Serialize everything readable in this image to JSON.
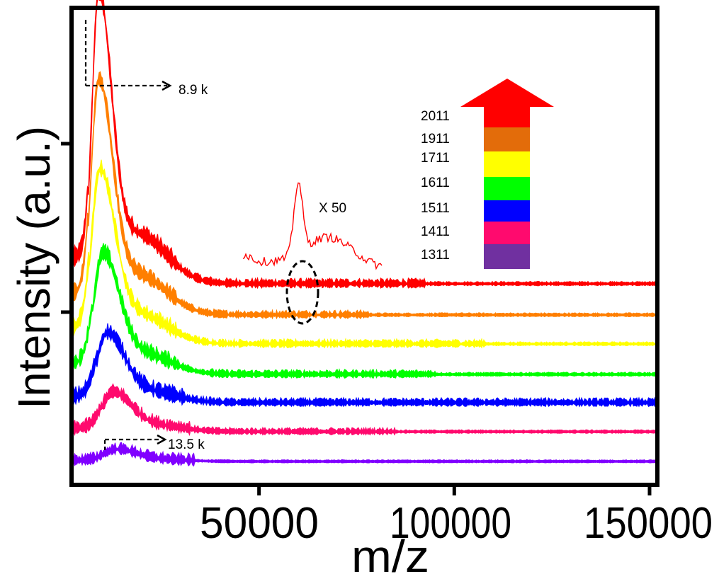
{
  "chart_data": {
    "type": "line",
    "title": "",
    "xlabel": "m/z",
    "ylabel": "Intensity (a.u.)",
    "xlim": [
      2000,
      152000
    ],
    "x_ticks": [
      50000,
      100000,
      150000
    ],
    "x_tick_labels": [
      "50000",
      "100000",
      "150000"
    ],
    "y_ticks_unlabeled": 2,
    "grid": false,
    "offset_stacked": true,
    "series": [
      {
        "name": "2011",
        "color": "#ff0000",
        "peak_mz": 8900,
        "peak_intensity": 1.0
      },
      {
        "name": "1911",
        "color": "#ff7f00",
        "peak_mz": 8900,
        "peak_intensity": 0.82
      },
      {
        "name": "1711",
        "color": "#ffff00",
        "peak_mz": 9200,
        "peak_intensity": 0.62
      },
      {
        "name": "1611",
        "color": "#00ff00",
        "peak_mz": 10000,
        "peak_intensity": 0.45
      },
      {
        "name": "1511",
        "color": "#0000ff",
        "peak_mz": 11000,
        "peak_intensity": 0.29
      },
      {
        "name": "1411",
        "color": "#ff0a6e",
        "peak_mz": 12500,
        "peak_intensity": 0.16
      },
      {
        "name": "1311",
        "color": "#8000ff",
        "peak_mz": 13500,
        "peak_intensity": 0.06
      }
    ],
    "legend": {
      "placement": "top-right",
      "labels": [
        "2011",
        "1911",
        "1711",
        "1611",
        "1511",
        "1411",
        "1311"
      ],
      "colors": [
        "#ff0000",
        "#e36c0a",
        "#ffff00",
        "#00ff00",
        "#0000ff",
        "#ff0a6e",
        "#7030a0"
      ]
    },
    "annotations": [
      {
        "text": "8.9 k",
        "mz": 8900
      },
      {
        "text": "13.5 k",
        "mz": 13500
      },
      {
        "text": "X 50",
        "inset_mz_range": [
          48000,
          83000
        ],
        "inset_peak_mz": 62000
      }
    ]
  }
}
